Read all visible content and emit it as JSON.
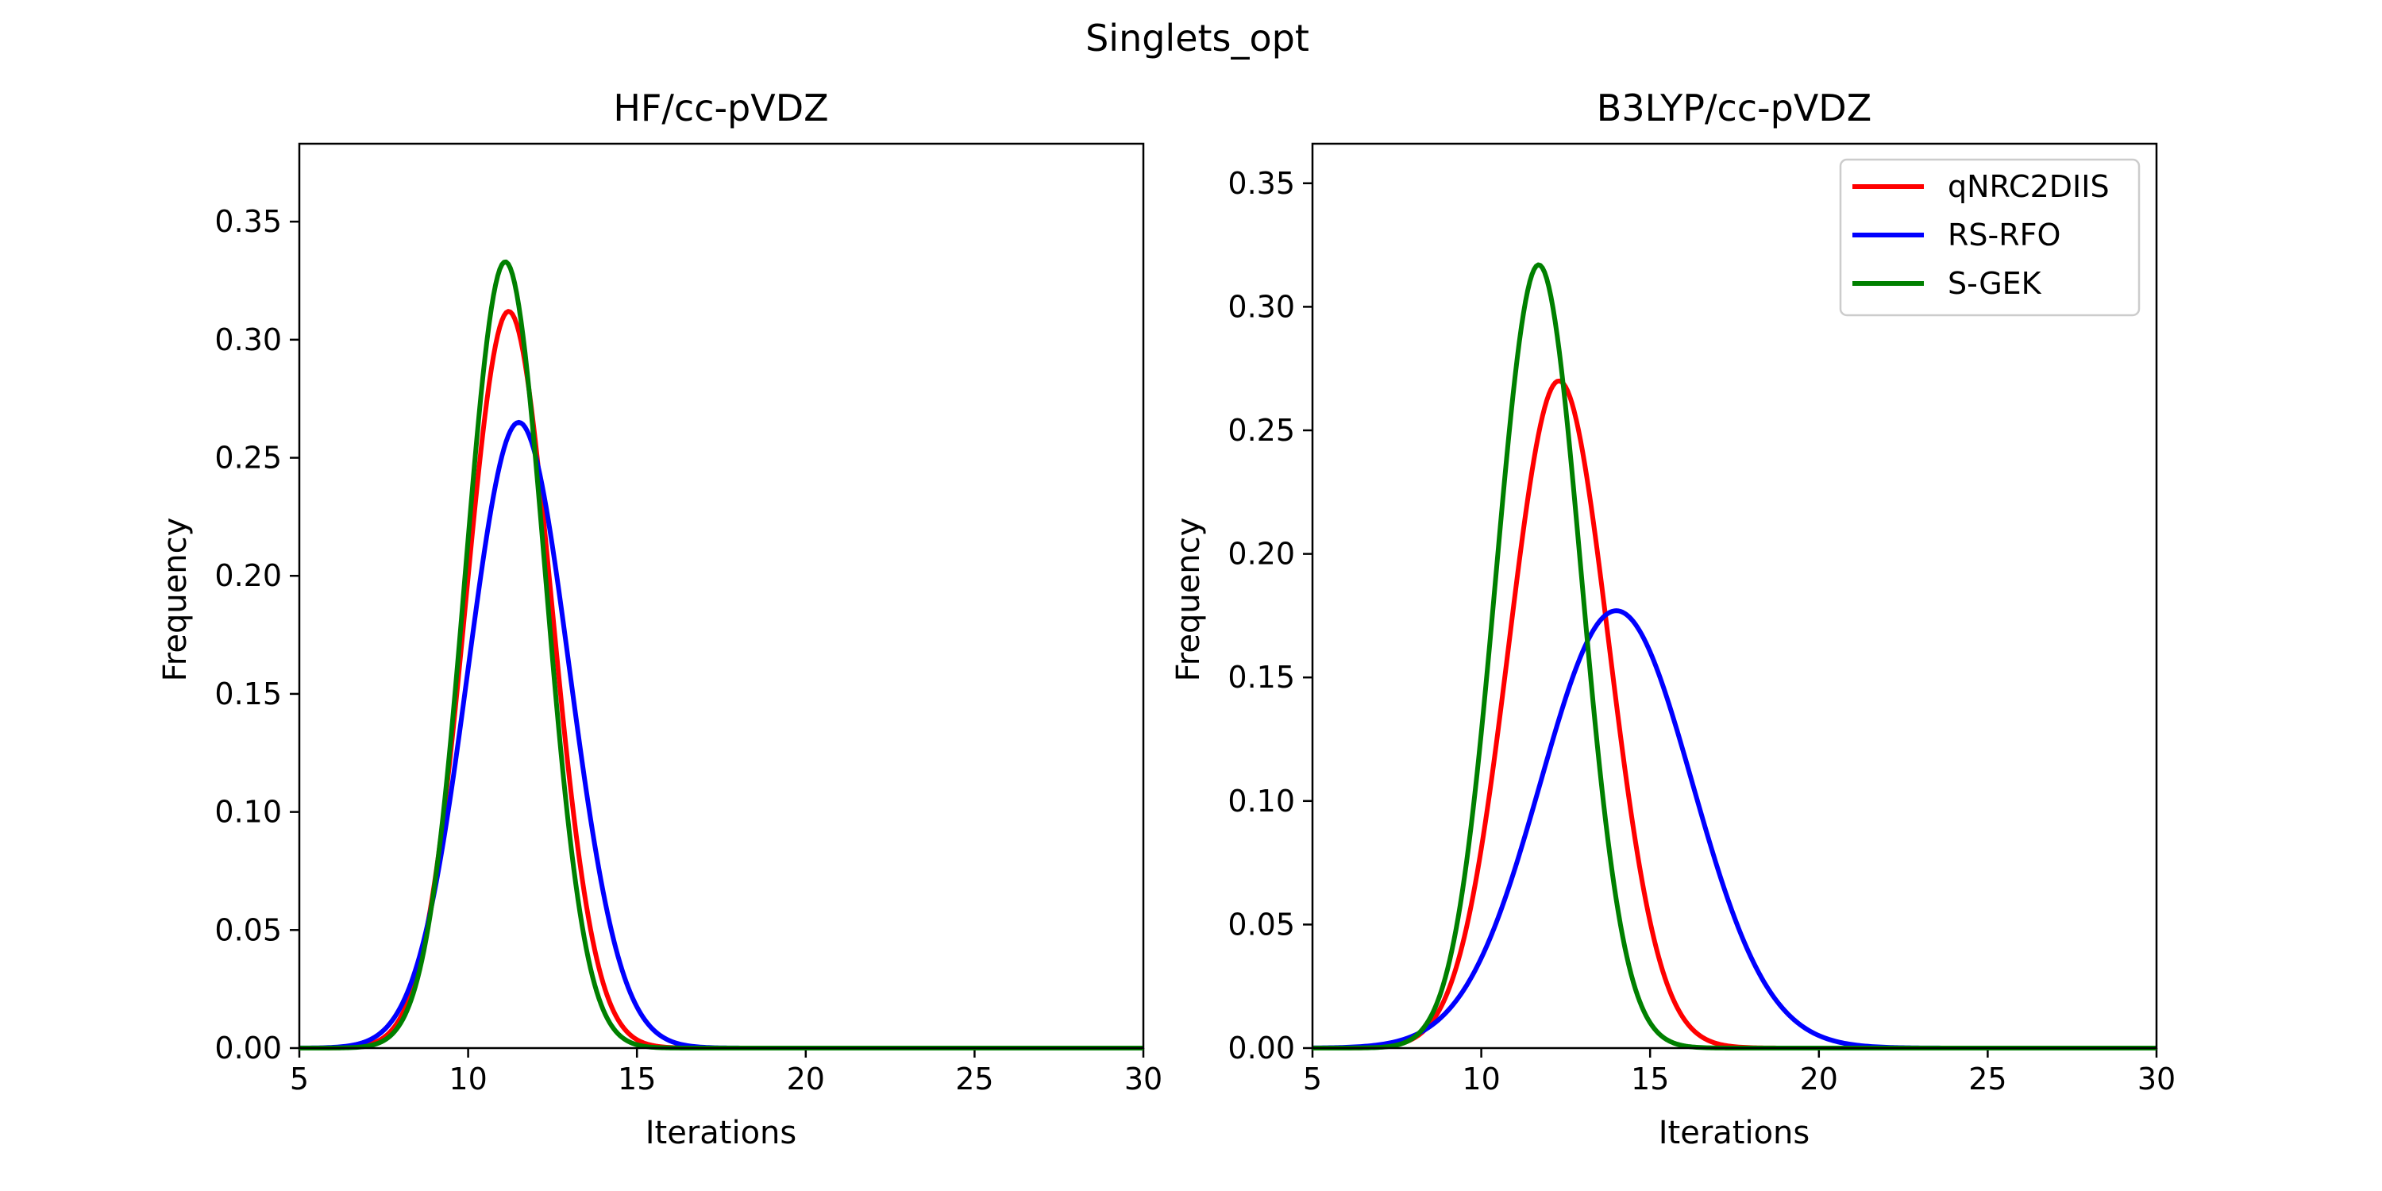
{
  "figure": {
    "suptitle": "Singlets_opt"
  },
  "chart_data": [
    {
      "type": "line",
      "title": "HF/cc-pVDZ",
      "xlabel": "Iterations",
      "ylabel": "Frequency",
      "xlim": [
        5,
        30
      ],
      "ylim": [
        0,
        0.383
      ],
      "xticks": [
        5,
        10,
        15,
        20,
        25,
        30
      ],
      "xtick_labels": [
        "5",
        "10",
        "15",
        "20",
        "25",
        "30"
      ],
      "yticks": [
        0,
        0.05,
        0.1,
        0.15,
        0.2,
        0.25,
        0.3,
        0.35
      ],
      "ytick_labels": [
        "0.00",
        "0.05",
        "0.10",
        "0.15",
        "0.20",
        "0.25",
        "0.30",
        "0.35"
      ],
      "grid": false,
      "legend": null,
      "series": [
        {
          "color": "#ff0000",
          "peak_x": 11.2,
          "peak_y": 0.312,
          "sd": 1.27
        },
        {
          "color": "#0000ff",
          "peak_x": 11.5,
          "peak_y": 0.265,
          "sd": 1.5
        },
        {
          "color": "#008000",
          "peak_x": 11.1,
          "peak_y": 0.333,
          "sd": 1.18
        }
      ]
    },
    {
      "type": "line",
      "title": "B3LYP/cc-pVDZ",
      "xlabel": "Iterations",
      "ylabel": "Frequency",
      "xlim": [
        5,
        30
      ],
      "ylim": [
        0,
        0.366
      ],
      "xticks": [
        5,
        10,
        15,
        20,
        25,
        30
      ],
      "xtick_labels": [
        "5",
        "10",
        "15",
        "20",
        "25",
        "30"
      ],
      "yticks": [
        0,
        0.05,
        0.1,
        0.15,
        0.2,
        0.25,
        0.3,
        0.35
      ],
      "ytick_labels": [
        "0.00",
        "0.05",
        "0.10",
        "0.15",
        "0.20",
        "0.25",
        "0.30",
        "0.35"
      ],
      "grid": false,
      "legend": "top-right",
      "series": [
        {
          "name": "qNRC2DIIS",
          "color": "#ff0000",
          "peak_x": 12.3,
          "peak_y": 0.27,
          "sd": 1.48
        },
        {
          "name": "RS-RFO",
          "color": "#0000ff",
          "peak_x": 14.0,
          "peak_y": 0.177,
          "sd": 2.25
        },
        {
          "name": "S-GEK",
          "color": "#008000",
          "peak_x": 11.7,
          "peak_y": 0.317,
          "sd": 1.26
        }
      ]
    }
  ]
}
